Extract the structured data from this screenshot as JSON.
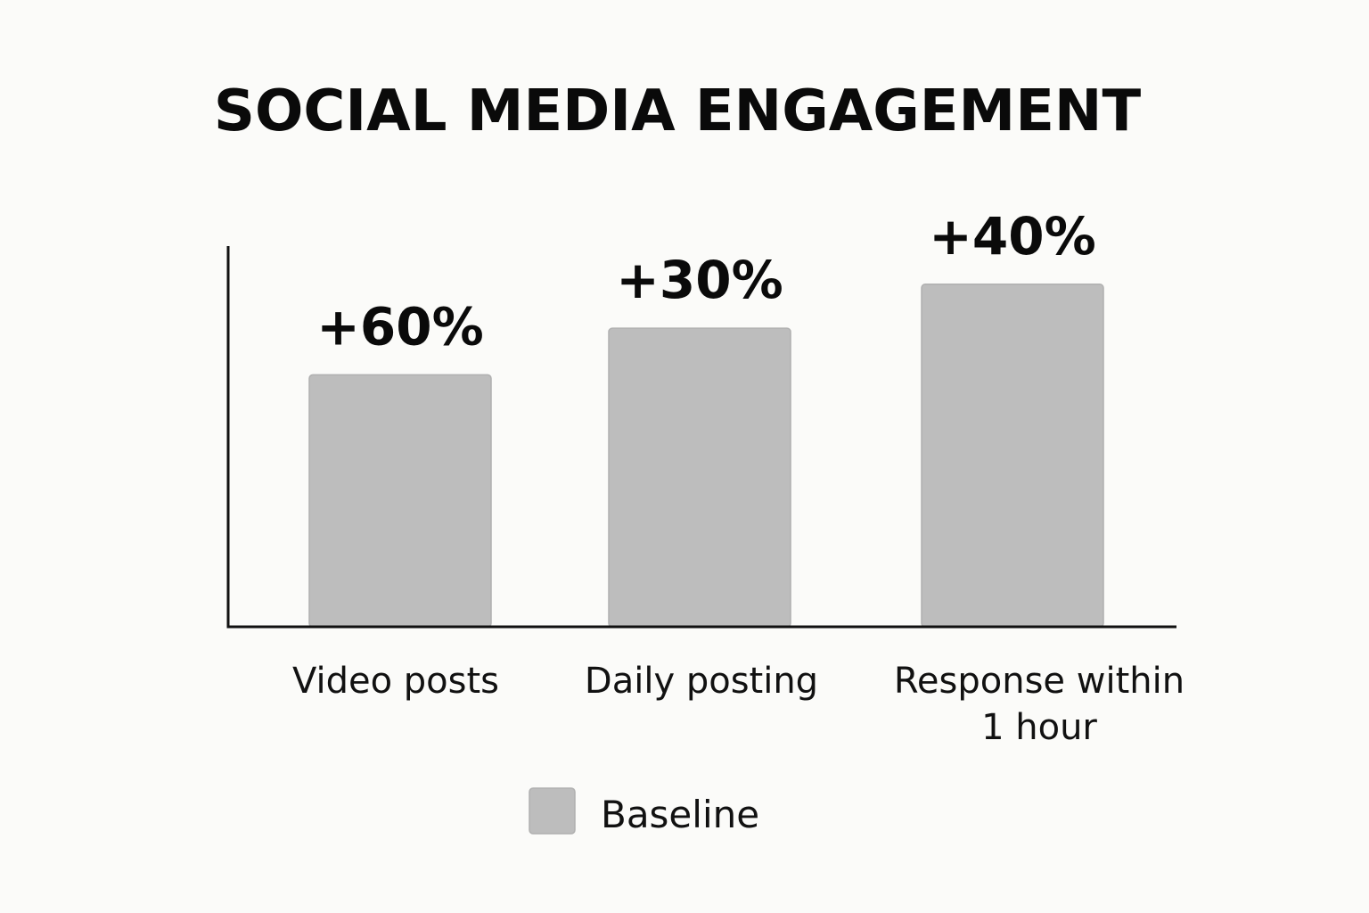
{
  "chart_data": {
    "type": "bar",
    "title": "SOCIAL MEDIA ENGAGEMENT",
    "categories": [
      [
        "Video posts"
      ],
      [
        "Daily posting"
      ],
      [
        "Response within",
        "1 hour"
      ]
    ],
    "value_labels": [
      "+60%",
      "+30%",
      "+40%"
    ],
    "values": [
      60,
      30,
      40
    ],
    "bar_heights_relative": [
      0.665,
      0.788,
      0.904
    ],
    "series": [
      {
        "name": "Baseline",
        "color": "#bdbdbd"
      }
    ],
    "grid": false,
    "legend_position": "bottom-center",
    "axis_color": "#111111",
    "bar_color": "#bdbdbd",
    "bar_edge_color": "#b0b0b0"
  }
}
